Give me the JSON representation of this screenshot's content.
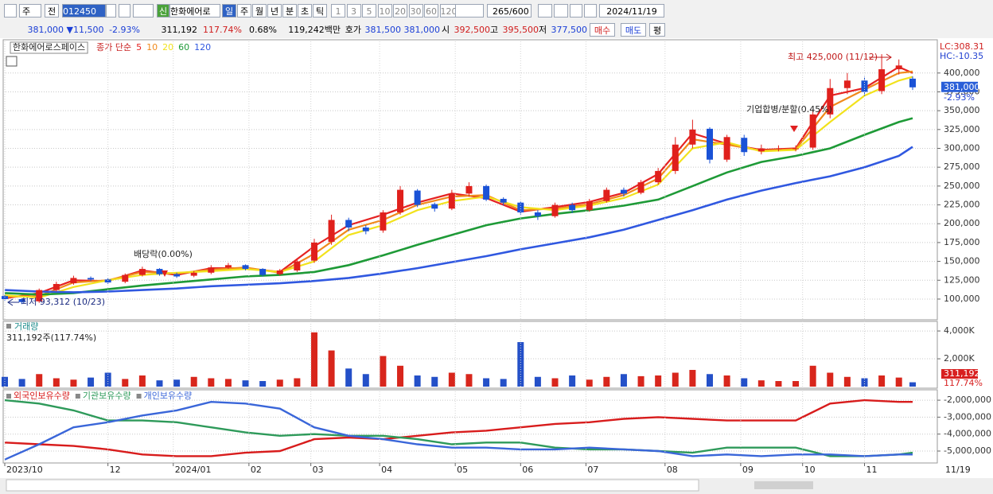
{
  "toolbar": {
    "mode": "주",
    "prev": "전",
    "code": "012450",
    "new_badge": "신",
    "name": "한화에어로",
    "periods": [
      "일",
      "주",
      "월",
      "년",
      "분",
      "초",
      "틱"
    ],
    "intervals": [
      "1",
      "3",
      "5",
      "10",
      "20",
      "30",
      "60",
      "120"
    ],
    "count": "265",
    "max": "/600",
    "date": "2024/11/19"
  },
  "quote": {
    "price": "381,000 ▼",
    "change": "11,500",
    "rate": "-2.93%",
    "volume": "311,192",
    "volume_rate": "117.74%",
    "turnover": "0.68%",
    "amount": "119,242백만",
    "ask_label": "호가",
    "ask": "381,500",
    "bid": "381,000",
    "open_label": "시",
    "open": "392,500",
    "high_label": "고",
    "high": "395,500",
    "low_label": "저",
    "low": "377,500",
    "buttons": [
      "매수",
      "매도",
      "평"
    ]
  },
  "chart_data": [
    {
      "type": "candlestick",
      "title": "한화에어로스페이스",
      "subtitle": "종가 단순",
      "up_color": "#e0201c",
      "down_color": "#1a52d6",
      "x": [
        0,
        5,
        10,
        15,
        20,
        25,
        30,
        35,
        40,
        45,
        50,
        55,
        60,
        65,
        70,
        75,
        80,
        85,
        90,
        95,
        100,
        105,
        110,
        115,
        120,
        125,
        130,
        135,
        140,
        145,
        150,
        155,
        160,
        165,
        170,
        175,
        180,
        185,
        190,
        195,
        200,
        205,
        210,
        215,
        220,
        225,
        230,
        235,
        240,
        245,
        250,
        255,
        260,
        264
      ],
      "open": [
        104000,
        100000,
        97000,
        112000,
        121000,
        128000,
        126000,
        123000,
        132000,
        140000,
        133000,
        131000,
        135000,
        142000,
        145000,
        140000,
        133000,
        138000,
        151000,
        176000,
        205000,
        195000,
        191000,
        215000,
        244000,
        226000,
        220000,
        240000,
        250000,
        233000,
        228000,
        215000,
        210000,
        225000,
        218000,
        230000,
        245000,
        241000,
        255000,
        270000,
        305000,
        326000,
        285000,
        314000,
        296000,
        300000,
        300000,
        301000,
        345000,
        380000,
        390000,
        376000,
        405000,
        392500
      ],
      "high": [
        106000,
        101000,
        114000,
        123000,
        131000,
        130000,
        128000,
        134000,
        143000,
        141000,
        135000,
        137000,
        145000,
        148000,
        146000,
        141000,
        140000,
        153000,
        180000,
        212000,
        208000,
        198000,
        218000,
        250000,
        246000,
        228000,
        245000,
        255000,
        252000,
        235000,
        230000,
        218000,
        228000,
        228000,
        233000,
        248000,
        248000,
        258000,
        274000,
        315000,
        338000,
        328000,
        318000,
        318000,
        305000,
        304000,
        304000,
        350000,
        392000,
        400000,
        395000,
        425000,
        418000,
        395500
      ],
      "low": [
        98000,
        93312,
        95000,
        110000,
        119000,
        124000,
        120000,
        121000,
        130000,
        131000,
        128000,
        129000,
        133000,
        140000,
        138000,
        130000,
        131000,
        136000,
        148000,
        172000,
        190000,
        186000,
        188000,
        212000,
        222000,
        216000,
        218000,
        236000,
        230000,
        224000,
        212000,
        205000,
        208000,
        214000,
        216000,
        228000,
        236000,
        239000,
        252000,
        266000,
        300000,
        280000,
        282000,
        290000,
        292000,
        296000,
        296000,
        298000,
        340000,
        372000,
        370000,
        372000,
        398000,
        377500
      ],
      "close": [
        100000,
        96000,
        112000,
        120000,
        128000,
        126000,
        122000,
        132000,
        140000,
        133000,
        130000,
        135000,
        142000,
        145000,
        140000,
        132000,
        138000,
        150000,
        175000,
        205000,
        195000,
        190000,
        215000,
        245000,
        225000,
        220000,
        240000,
        250000,
        232000,
        228000,
        215000,
        210000,
        225000,
        218000,
        230000,
        245000,
        240000,
        255000,
        270000,
        305000,
        325000,
        285000,
        315000,
        295000,
        300000,
        300000,
        300000,
        345000,
        380000,
        390000,
        375000,
        405000,
        410000,
        381000
      ],
      "series": [
        {
          "name": "5",
          "color": "#e52222",
          "x": [
            0,
            10,
            20,
            30,
            40,
            50,
            60,
            70,
            80,
            90,
            100,
            110,
            120,
            130,
            140,
            150,
            160,
            170,
            180,
            190,
            200,
            210,
            220,
            230,
            240,
            250,
            260,
            264
          ],
          "values": [
            101000,
            108000,
            125000,
            124000,
            138000,
            132000,
            141000,
            141000,
            136000,
            170000,
            198000,
            212000,
            228000,
            240000,
            234000,
            216000,
            222000,
            229000,
            241000,
            266000,
            320000,
            306000,
            298000,
            300000,
            370000,
            380000,
            408000,
            400000
          ]
        },
        {
          "name": "10",
          "color": "#f08a1c",
          "x": [
            0,
            10,
            20,
            30,
            40,
            50,
            60,
            70,
            80,
            90,
            100,
            110,
            120,
            130,
            140,
            150,
            160,
            170,
            180,
            190,
            200,
            210,
            220,
            230,
            240,
            250,
            260,
            264
          ],
          "values": [
            103000,
            104000,
            122000,
            125000,
            136000,
            134000,
            139000,
            142000,
            135000,
            160000,
            192000,
            205000,
            225000,
            236000,
            238000,
            218000,
            220000,
            226000,
            238000,
            260000,
            312000,
            305000,
            297000,
            299000,
            355000,
            378000,
            400000,
            402000
          ]
        },
        {
          "name": "20",
          "color": "#f2e21c",
          "x": [
            0,
            10,
            20,
            30,
            40,
            50,
            60,
            70,
            80,
            90,
            100,
            110,
            120,
            130,
            140,
            150,
            160,
            170,
            180,
            190,
            200,
            210,
            220,
            230,
            240,
            250,
            260,
            264
          ],
          "values": [
            105000,
            102000,
            116000,
            125000,
            132000,
            135000,
            137000,
            140000,
            136000,
            150000,
            185000,
            198000,
            218000,
            230000,
            236000,
            222000,
            218000,
            224000,
            234000,
            252000,
            300000,
            308000,
            296000,
            298000,
            335000,
            370000,
            390000,
            395000
          ]
        },
        {
          "name": "60",
          "color": "#1e9a37",
          "x": [
            0,
            10,
            20,
            30,
            40,
            50,
            60,
            70,
            80,
            90,
            100,
            110,
            120,
            130,
            140,
            150,
            160,
            170,
            180,
            190,
            200,
            210,
            220,
            230,
            240,
            250,
            260,
            264
          ],
          "values": [
            108000,
            106000,
            108000,
            113000,
            118000,
            122000,
            126000,
            130000,
            132000,
            136000,
            145000,
            158000,
            172000,
            185000,
            198000,
            207000,
            213000,
            218000,
            224000,
            232000,
            250000,
            268000,
            282000,
            290000,
            300000,
            318000,
            335000,
            340000
          ]
        },
        {
          "name": "120",
          "color": "#3058e0",
          "x": [
            0,
            10,
            20,
            30,
            40,
            50,
            60,
            70,
            80,
            90,
            100,
            110,
            120,
            130,
            140,
            150,
            160,
            170,
            180,
            190,
            200,
            210,
            220,
            230,
            240,
            250,
            260,
            264
          ],
          "values": [
            112000,
            110000,
            109000,
            110000,
            112000,
            114000,
            117000,
            119000,
            121000,
            124000,
            128000,
            134000,
            141000,
            149000,
            157000,
            166000,
            174000,
            182000,
            192000,
            205000,
            218000,
            232000,
            244000,
            254000,
            263000,
            275000,
            290000,
            302000
          ]
        }
      ],
      "xlim": [
        0,
        264
      ],
      "ylim": [
        72500,
        442000
      ],
      "yticks": [
        {
          "value": 100000,
          "label": "100,000"
        },
        {
          "value": 125000,
          "label": "125,000"
        },
        {
          "value": 150000,
          "label": "150,000"
        },
        {
          "value": 175000,
          "label": "175,000"
        },
        {
          "value": 200000,
          "label": "200,000"
        },
        {
          "value": 225000,
          "label": "225,000"
        },
        {
          "value": 250000,
          "label": "250,000"
        },
        {
          "value": 275000,
          "label": "275,000"
        },
        {
          "value": 300000,
          "label": "300,000"
        },
        {
          "value": 325000,
          "label": "325,000"
        },
        {
          "value": 350000,
          "label": "350,000"
        },
        {
          "value": 375000,
          "label": "375,000"
        },
        {
          "value": 400000,
          "label": "400,000"
        }
      ],
      "annotations": [
        {
          "text": "최고 425,000 (11/12)",
          "color": "#c01818"
        },
        {
          "text": "최저 93,312 (10/23)",
          "color": "#1a2a80"
        },
        {
          "text": "배당락(0.00%)",
          "color": "#222222"
        },
        {
          "text": "기업합병/분할(0.45%)",
          "color": "#222222"
        }
      ],
      "lc_label": "LC:308.31",
      "hc_label": "HC:-10.35",
      "last_label": "381,000",
      "last_change": "-2.93%"
    },
    {
      "type": "bar",
      "title": "거래량",
      "subtitle": "311,192주(117.74%)",
      "up_color": "#d8261c",
      "down_color": "#2450c8",
      "x": [
        0,
        5,
        10,
        15,
        20,
        25,
        30,
        35,
        40,
        45,
        50,
        55,
        60,
        65,
        70,
        75,
        80,
        85,
        90,
        95,
        100,
        105,
        110,
        115,
        120,
        125,
        130,
        135,
        140,
        145,
        150,
        155,
        160,
        165,
        170,
        175,
        180,
        185,
        190,
        195,
        200,
        205,
        210,
        215,
        220,
        225,
        230,
        235,
        240,
        245,
        250,
        255,
        260,
        264
      ],
      "values": [
        700000,
        550000,
        900000,
        600000,
        500000,
        650000,
        1000000,
        550000,
        800000,
        450000,
        500000,
        700000,
        600000,
        550000,
        450000,
        400000,
        500000,
        600000,
        3900000,
        2600000,
        1300000,
        900000,
        2200000,
        1500000,
        800000,
        700000,
        1000000,
        900000,
        600000,
        550000,
        3200000,
        700000,
        600000,
        800000,
        500000,
        700000,
        900000,
        750000,
        800000,
        1000000,
        1200000,
        900000,
        800000,
        600000,
        450000,
        400000,
        400000,
        1500000,
        1000000,
        700000,
        600000,
        800000,
        650000,
        311192
      ],
      "xlim": [
        0,
        264
      ],
      "ylim": [
        0,
        4690000
      ],
      "yticks": [
        {
          "value": 2000000,
          "label": "2,000K"
        },
        {
          "value": 4000000,
          "label": "4,000K"
        }
      ],
      "last_label": "311,192",
      "last_rate": "117.74%"
    },
    {
      "type": "line",
      "x": [
        0,
        10,
        20,
        30,
        40,
        50,
        60,
        70,
        80,
        90,
        100,
        110,
        120,
        130,
        140,
        150,
        160,
        170,
        180,
        190,
        200,
        210,
        220,
        230,
        240,
        250,
        260,
        264
      ],
      "series": [
        {
          "name": "외국인보유수량",
          "color": "#d81c1c",
          "values": [
            -4500000,
            -4600000,
            -4700000,
            -4900000,
            -5200000,
            -5300000,
            -5300000,
            -5100000,
            -5000000,
            -4300000,
            -4200000,
            -4300000,
            -4100000,
            -3900000,
            -3800000,
            -3600000,
            -3400000,
            -3300000,
            -3100000,
            -3000000,
            -3100000,
            -3200000,
            -3200000,
            -3200000,
            -2200000,
            -2000000,
            -2100000,
            -2100000
          ]
        },
        {
          "name": "기관보유수량",
          "color": "#2e9a5a",
          "values": [
            -2000000,
            -2200000,
            -2600000,
            -3200000,
            -3200000,
            -3300000,
            -3600000,
            -3900000,
            -4100000,
            -4000000,
            -4100000,
            -4100000,
            -4300000,
            -4600000,
            -4500000,
            -4500000,
            -4800000,
            -4900000,
            -4900000,
            -5000000,
            -5100000,
            -4800000,
            -4800000,
            -4800000,
            -5300000,
            -5300000,
            -5200000,
            -5100000
          ]
        },
        {
          "name": "개인보유수량",
          "color": "#3a66d9",
          "values": [
            -5500000,
            -4600000,
            -3600000,
            -3300000,
            -2900000,
            -2600000,
            -2100000,
            -2200000,
            -2500000,
            -3600000,
            -4100000,
            -4300000,
            -4600000,
            -4800000,
            -4800000,
            -4900000,
            -4900000,
            -4800000,
            -4900000,
            -5000000,
            -5300000,
            -5200000,
            -5300000,
            -5200000,
            -5200000,
            -5300000,
            -5200000,
            -5200000
          ]
        }
      ],
      "xlim": [
        0,
        264
      ],
      "ylim": [
        -5610000,
        -1480000
      ],
      "yticks": [
        {
          "value": -2000000,
          "label": "-2,000,000"
        },
        {
          "value": -3000000,
          "label": "-3,000,000"
        },
        {
          "value": -4000000,
          "label": "-4,000,000"
        },
        {
          "value": -5000000,
          "label": "-5,000,000"
        }
      ],
      "xticks": [
        {
          "value": 0,
          "label": "2023/10"
        },
        {
          "value": 30,
          "label": "12"
        },
        {
          "value": 49,
          "label": "2024/01"
        },
        {
          "value": 71,
          "label": "02"
        },
        {
          "value": 89,
          "label": "03"
        },
        {
          "value": 109,
          "label": "04"
        },
        {
          "value": 131,
          "label": "05"
        },
        {
          "value": 150,
          "label": "06"
        },
        {
          "value": 169,
          "label": "07"
        },
        {
          "value": 192,
          "label": "08"
        },
        {
          "value": 214,
          "label": "09"
        },
        {
          "value": 232,
          "label": "10"
        },
        {
          "value": 250,
          "label": "11"
        }
      ],
      "end_label": "11/19"
    }
  ]
}
